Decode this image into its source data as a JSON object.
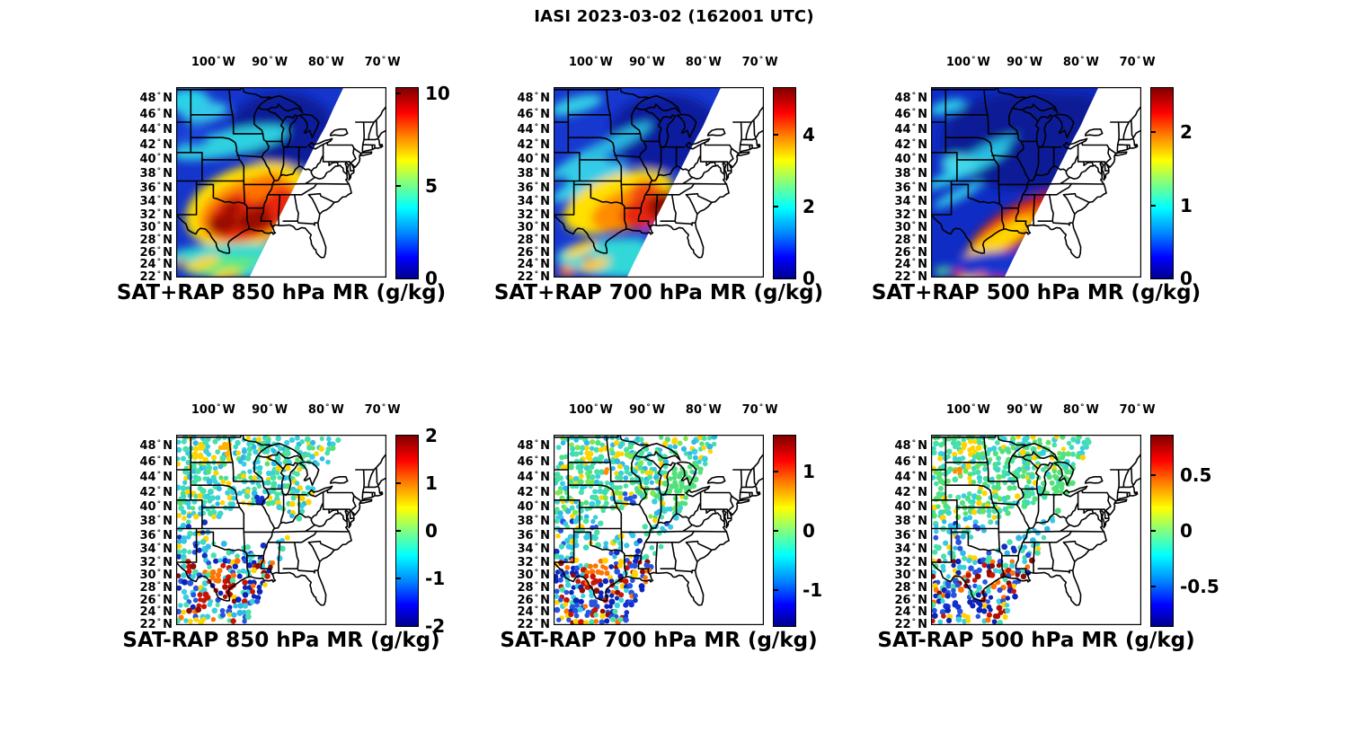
{
  "title": "IASI 2023-03-02 (162001 UTC)",
  "axes": {
    "degree_symbol": "°",
    "lon_ticks": [
      {
        "num": "100",
        "hem": "W"
      },
      {
        "num": "90",
        "hem": "W"
      },
      {
        "num": "80",
        "hem": "W"
      },
      {
        "num": "70",
        "hem": "W"
      }
    ],
    "lon_values_deg_w": [
      100,
      90,
      80,
      70
    ],
    "lat_ticks": [
      {
        "num": "48",
        "hem": "N"
      },
      {
        "num": "46",
        "hem": "N"
      },
      {
        "num": "44",
        "hem": "N"
      },
      {
        "num": "42",
        "hem": "N"
      },
      {
        "num": "40",
        "hem": "N"
      },
      {
        "num": "38",
        "hem": "N"
      },
      {
        "num": "36",
        "hem": "N"
      },
      {
        "num": "34",
        "hem": "N"
      },
      {
        "num": "32",
        "hem": "N"
      },
      {
        "num": "30",
        "hem": "N"
      },
      {
        "num": "28",
        "hem": "N"
      },
      {
        "num": "26",
        "hem": "N"
      },
      {
        "num": "24",
        "hem": "N"
      },
      {
        "num": "22",
        "hem": "N"
      }
    ],
    "lat_values_deg_n": [
      48,
      46,
      44,
      42,
      40,
      38,
      36,
      34,
      32,
      30,
      28,
      26,
      24,
      22
    ]
  },
  "panels": [
    {
      "id": "sat-plus-rap-850",
      "caption": "SAT+RAP 850 hPa MR (g/kg)",
      "colorbar": {
        "min": 0,
        "max": 10.3,
        "ticks": [
          {
            "label": "10",
            "value": 10
          },
          {
            "label": "5",
            "value": 5
          },
          {
            "label": "0",
            "value": 0
          }
        ]
      }
    },
    {
      "id": "sat-plus-rap-700",
      "caption": "SAT+RAP 700 hPa MR (g/kg)",
      "colorbar": {
        "min": 0,
        "max": 5.3,
        "ticks": [
          {
            "label": "4",
            "value": 4
          },
          {
            "label": "2",
            "value": 2
          },
          {
            "label": "0",
            "value": 0
          }
        ]
      }
    },
    {
      "id": "sat-plus-rap-500",
      "caption": "SAT+RAP 500 hPa MR (g/kg)",
      "colorbar": {
        "min": 0,
        "max": 2.6,
        "ticks": [
          {
            "label": "2",
            "value": 2
          },
          {
            "label": "1",
            "value": 1
          },
          {
            "label": "0",
            "value": 0
          }
        ]
      }
    },
    {
      "id": "sat-minus-rap-850",
      "caption": "SAT-RAP 850 hPa MR (g/kg)",
      "colorbar": {
        "min": -2,
        "max": 2,
        "ticks": [
          {
            "label": "2",
            "value": 2
          },
          {
            "label": "1",
            "value": 1
          },
          {
            "label": "0",
            "value": 0
          },
          {
            "label": "-1",
            "value": -1
          },
          {
            "label": "-2",
            "value": -2
          }
        ]
      }
    },
    {
      "id": "sat-minus-rap-700",
      "caption": "SAT-RAP 700 hPa MR (g/kg)",
      "colorbar": {
        "min": -1.6,
        "max": 1.6,
        "ticks": [
          {
            "label": "1",
            "value": 1
          },
          {
            "label": "0",
            "value": 0
          },
          {
            "label": "-1",
            "value": -1
          }
        ]
      }
    },
    {
      "id": "sat-minus-rap-500",
      "caption": "SAT-RAP 500 hPa MR (g/kg)",
      "colorbar": {
        "min": -0.85,
        "max": 0.85,
        "ticks": [
          {
            "label": "0.5",
            "value": 0.5
          },
          {
            "label": "0",
            "value": 0
          },
          {
            "label": "-0.5",
            "value": -0.5
          }
        ]
      }
    }
  ],
  "colors": {
    "colormap": "jet",
    "jet_stops": [
      "#00008f",
      "#0000ff",
      "#0080ff",
      "#00ffff",
      "#80ff80",
      "#ffff00",
      "#ff8000",
      "#ff0000",
      "#800000"
    ],
    "background": "#ffffff",
    "text": "#000000",
    "map_outline": "#000000"
  },
  "chart_data": [
    {
      "panel": "top-left",
      "type": "heatmap",
      "title": "SAT+RAP 850 hPa MR (g/kg)",
      "level_hPa": 850,
      "quantity": "SAT+RAP mixing ratio",
      "units": "g/kg",
      "colormap": "jet",
      "colorbar_range": [
        0,
        10.3
      ],
      "colorbar_ticks": [
        0,
        5,
        10
      ],
      "lon_extent_deg_w": [
        106.6,
        69.3
      ],
      "lat_extent_deg_n": [
        21.9,
        49.3
      ],
      "coverage": "IASI swath west of diagonal edge from ~77W at 49N to ~94W at 22N; white = no retrieval",
      "approx_field_g_per_kg": [
        {
          "region": "Great Lakes / upper Midwest 40-49N",
          "value": 1.5
        },
        {
          "region": "NW corner (Dakotas)",
          "value": 4
        },
        {
          "region": "SD-NE-IA cyan band 41-43N",
          "value": 4.5
        },
        {
          "region": "Kansas / Missouri 37-40N",
          "value": 2.5
        },
        {
          "region": "E Texas - Oklahoma - Arkansas - Louisiana maximum",
          "value": 9.5
        },
        {
          "region": "Gulf coast and NE Mexico 22-27N",
          "value": 5
        }
      ]
    },
    {
      "panel": "top-middle",
      "type": "heatmap",
      "title": "SAT+RAP 700 hPa MR (g/kg)",
      "level_hPa": 700,
      "quantity": "SAT+RAP mixing ratio",
      "units": "g/kg",
      "colormap": "jet",
      "colorbar_range": [
        0,
        5.3
      ],
      "colorbar_ticks": [
        0,
        2,
        4
      ],
      "lon_extent_deg_w": [
        106.6,
        69.3
      ],
      "lat_extent_deg_n": [
        21.9,
        49.3
      ],
      "coverage": "same IASI swath; white = no retrieval",
      "approx_field_g_per_kg": [
        {
          "region": "upper Midwest / Great Lakes",
          "value": 0.8
        },
        {
          "region": "NW-SE cyan streaks across plains",
          "value": 1.8
        },
        {
          "region": "central Texas yellow band",
          "value": 3.2
        },
        {
          "region": "Arkansas - Louisiana orange",
          "value": 4
        },
        {
          "region": "Mississippi - Alabama dark red maximum",
          "value": 5.2
        },
        {
          "region": "Gulf of Mexico coast",
          "value": 2
        }
      ]
    },
    {
      "panel": "top-right",
      "type": "heatmap",
      "title": "SAT+RAP 500 hPa MR (g/kg)",
      "level_hPa": 500,
      "quantity": "SAT+RAP mixing ratio",
      "units": "g/kg",
      "colormap": "jet",
      "colorbar_range": [
        0,
        2.6
      ],
      "colorbar_ticks": [
        0,
        1,
        2
      ],
      "lon_extent_deg_w": [
        106.6,
        69.3
      ],
      "lat_extent_deg_n": [
        21.9,
        49.3
      ],
      "coverage": "same IASI swath; white = no retrieval",
      "approx_field_g_per_kg": [
        {
          "region": "north of 38N (dark blue)",
          "value": 0.3
        },
        {
          "region": "cyan NW-SE streaks",
          "value": 1
        },
        {
          "region": "dark red band SE Texas to Mississippi 28-36N",
          "value": 2.5
        },
        {
          "region": "orange-yellow fringe SW of band",
          "value": 1.7
        },
        {
          "region": "Gulf 22-27N blue with warm specks",
          "value": 0.5
        }
      ]
    },
    {
      "panel": "bottom-left",
      "type": "scatter-map",
      "title": "SAT-RAP 850 hPa MR (g/kg)",
      "level_hPa": 850,
      "quantity": "SAT minus RAP mixing-ratio difference",
      "units": "g/kg",
      "colormap": "jet",
      "colorbar_range": [
        -2,
        2
      ],
      "colorbar_ticks": [
        -2,
        -1,
        0,
        1,
        2
      ],
      "pattern": [
        {
          "region": "north of 38N",
          "value": "mostly -0.3 to +0.4 (cyan/green), yellow specks in N Dakota"
        },
        {
          "region": "32-38N",
          "value": "cyan/blue mix, -1 to 0"
        },
        {
          "region": "south of 32N, S Texas and Gulf",
          "value": "clusters near +-2: dark blue -2 offshore, dark red +2 and orange +1.5 in S Texas / NE Mexico"
        }
      ]
    },
    {
      "panel": "bottom-middle",
      "type": "scatter-map",
      "title": "SAT-RAP 700 hPa MR (g/kg)",
      "level_hPa": 700,
      "quantity": "SAT minus RAP mixing-ratio difference",
      "units": "g/kg",
      "colormap": "jet",
      "colorbar_range": [
        -1.6,
        1.6
      ],
      "colorbar_ticks": [
        -1,
        0,
        1
      ],
      "pattern": [
        {
          "region": "northeast of swath edge",
          "value": "near 0 (green)"
        },
        {
          "region": "plains 38-48N",
          "value": "-0.5 to +0.5 with orange/yellow streaks"
        },
        {
          "region": "S Texas / Gulf 22-30N",
          "value": "strong mixed +-1.5 clusters (dark blue and red)"
        }
      ]
    },
    {
      "panel": "bottom-right",
      "type": "scatter-map",
      "title": "SAT-RAP 500 hPa MR (g/kg)",
      "level_hPa": 500,
      "quantity": "SAT minus RAP mixing-ratio difference",
      "units": "g/kg",
      "colormap": "jet",
      "colorbar_range": [
        -0.85,
        0.85
      ],
      "colorbar_ticks": [
        -0.5,
        0,
        0.5
      ],
      "pattern": [
        {
          "region": "most of swath north of 30N",
          "value": "near 0 (green/cyan), scattered yellow"
        },
        {
          "region": "S Texas coast 24-28N",
          "value": "dark blue cluster near -0.8"
        },
        {
          "region": "Gulf ~22-24N",
          "value": "dark red cluster near +0.8"
        }
      ]
    }
  ]
}
